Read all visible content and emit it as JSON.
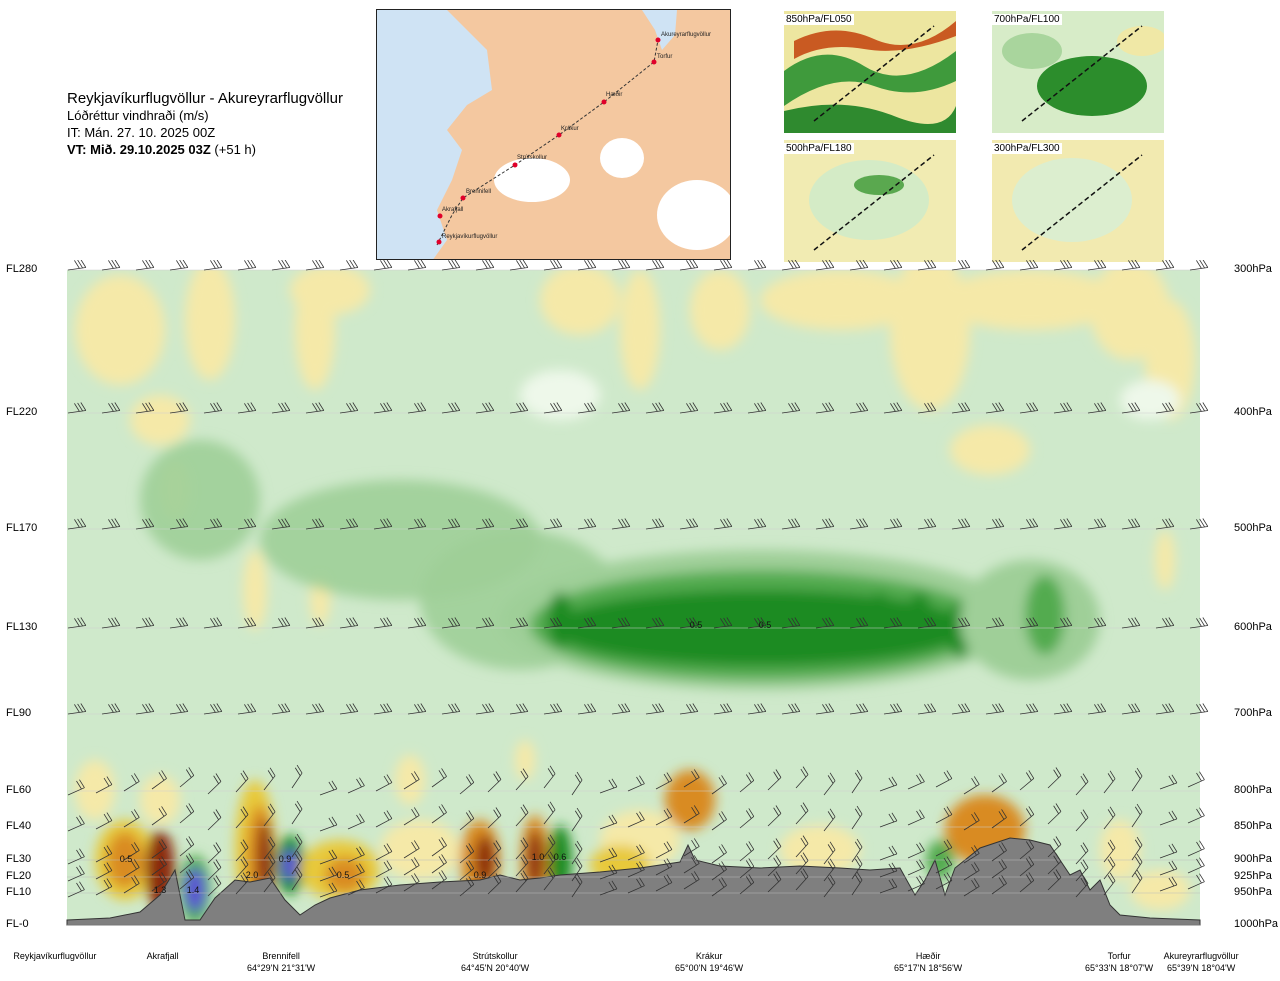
{
  "header": {
    "route": "Reykjavíkurflugvöllur - Akureyrarflugvöllur",
    "field": "Lóðréttur vindhraði (m/s)",
    "init_time": "IT: Mán. 27. 10. 2025 00Z",
    "valid_prefix": "VT: Mið. 29.10.2025 03Z",
    "valid_offset": "(+51 h)"
  },
  "map": {
    "points": [
      {
        "name": "Akureyrarflugvöllur"
      },
      {
        "name": "Torfur"
      },
      {
        "name": "Hæðir"
      },
      {
        "name": "Krákur"
      },
      {
        "name": "Strútskollur"
      },
      {
        "name": "Brennifell"
      },
      {
        "name": "Akrafjall"
      },
      {
        "name": "Reykjavíkurflugvöllur"
      }
    ]
  },
  "thumbnails": [
    {
      "label": "850hPa/FL050"
    },
    {
      "label": "700hPa/FL100"
    },
    {
      "label": "500hPa/FL180"
    },
    {
      "label": "300hPa/FL300"
    }
  ],
  "chart_data": {
    "type": "heatmap",
    "levels": [
      {
        "fl": "FL280",
        "hpa": "300hPa"
      },
      {
        "fl": "FL220",
        "hpa": "400hPa"
      },
      {
        "fl": "FL170",
        "hpa": "500hPa"
      },
      {
        "fl": "FL130",
        "hpa": "600hPa"
      },
      {
        "fl": "FL90",
        "hpa": "700hPa"
      },
      {
        "fl": "FL60",
        "hpa": "800hPa"
      },
      {
        "fl": "FL40",
        "hpa": "850hPa"
      },
      {
        "fl": "FL30",
        "hpa": "900hPa"
      },
      {
        "fl": "FL20",
        "hpa": "925hPa"
      },
      {
        "fl": "FL10",
        "hpa": "950hPa"
      },
      {
        "fl": "FL-0",
        "hpa": "1000hPa"
      }
    ],
    "stations": [
      {
        "name": "Reykjavíkurflugvöllur",
        "coord": ""
      },
      {
        "name": "Akrafjall",
        "coord": ""
      },
      {
        "name": "Brennifell",
        "coord": "64°29'N 21°31'W"
      },
      {
        "name": "Strútskollur",
        "coord": "64°45'N 20°40'W"
      },
      {
        "name": "Krákur",
        "coord": "65°00'N 19°46'W"
      },
      {
        "name": "Hæðir",
        "coord": "65°17'N 18°56'W"
      },
      {
        "name": "Torfur",
        "coord": "65°33'N 18°07'W"
      },
      {
        "name": "Akureyrarflugvöllur",
        "coord": "65°39'N 18°04'W"
      }
    ],
    "value_labels": [
      "0.5",
      "1.3",
      "1.4",
      "2.0",
      "0.9",
      "0.5",
      "0.9",
      "1.0",
      "0.6",
      "0.5",
      "0.5"
    ],
    "colors": {
      "strong_up": "#1e8b22",
      "mod_up": "#52ab4f",
      "weak_up": "#9fcf98",
      "very_weak_up": "#cfe9cb",
      "near_zero": "#eef8ea",
      "weak_down": "#f5e9a8",
      "mod_down": "#e8c93a",
      "strong_down": "#d98b24",
      "very_strong_down": "#8b2a10",
      "extreme_up": "#5c4fd6",
      "terrain": "#7f7f7f"
    }
  }
}
